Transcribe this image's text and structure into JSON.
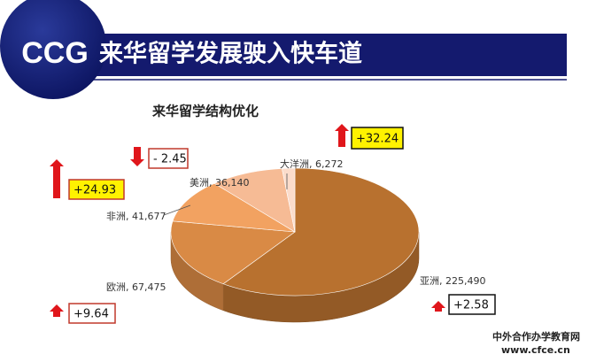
{
  "header": {
    "logo": "CCG",
    "title": "来华留学发展驶入快车道"
  },
  "chart_data": {
    "type": "pie3d",
    "title": "来华留学结构优化",
    "categories": [
      "亚洲",
      "欧洲",
      "非洲",
      "美洲",
      "大洋洲"
    ],
    "values": [
      225490,
      67475,
      41677,
      36140,
      6272
    ],
    "value_labels": [
      "225,490",
      "67,475",
      "41,677",
      "36,140",
      "6,272"
    ],
    "colors": [
      "#b8712f",
      "#d98a45",
      "#f2a261",
      "#f6bb95",
      "#fbdccb"
    ],
    "changes": [
      2.58,
      9.64,
      24.93,
      -2.45,
      32.24
    ],
    "change_labels": [
      "+2.58",
      "+9.64",
      "+24.93",
      "- 2.45",
      "+32.24"
    ]
  },
  "watermark": {
    "name": "中外合作办学教育网",
    "url": "www.cfce.cn"
  }
}
